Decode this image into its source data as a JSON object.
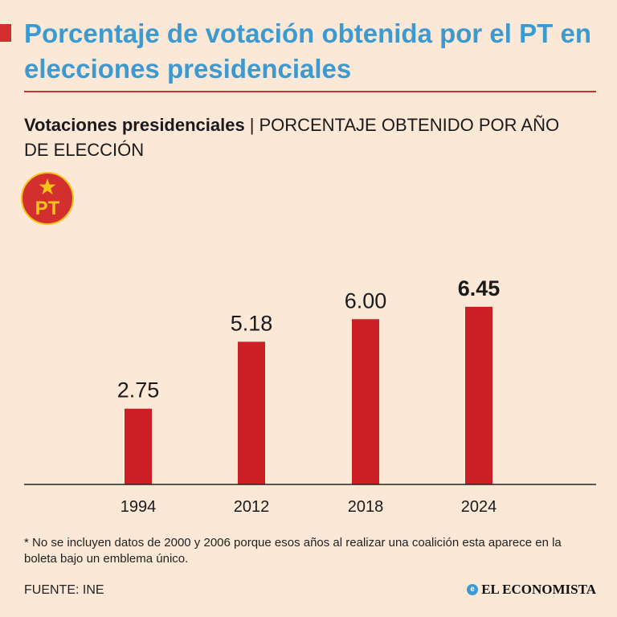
{
  "header": {
    "title": "Porcentaje de votación obtenida por el PT en elecciones presidenciales",
    "accent_color": "#d32f2f",
    "title_color": "#3d9ad1"
  },
  "subtitle": {
    "strong": "Votaciones presidenciales",
    "separator": "|",
    "rest": "PORCENTAJE OBTENIDO POR AÑO DE ELECCIÓN"
  },
  "logo": {
    "text": "PT",
    "icon": "pt-party-logo-icon",
    "bg_color": "#d32f2f",
    "star_color": "#f5c518"
  },
  "chart_data": {
    "type": "bar",
    "title": "Votaciones presidenciales",
    "subtitle": "PORCENTAJE OBTENIDO POR AÑO DE ELECCIÓN",
    "categories": [
      "1994",
      "2012",
      "2018",
      "2024"
    ],
    "values": [
      2.75,
      5.18,
      6.0,
      6.45
    ],
    "value_labels": [
      "2.75",
      "5.18",
      "6.00",
      "6.45"
    ],
    "highlight_index": 3,
    "xlabel": "",
    "ylabel": "",
    "ylim": [
      0,
      10.5
    ],
    "grid": false,
    "legend": "none",
    "bar_color": "#cc1f25"
  },
  "footnote": "* No se incluyen datos de 2000 y 2006 porque esos años al realizar una coalición esta aparece en la boleta bajo un emblema único.",
  "source": "FUENTE: INE",
  "brand": {
    "icon_letter": "e",
    "name": "EL ECONOMISTA"
  }
}
